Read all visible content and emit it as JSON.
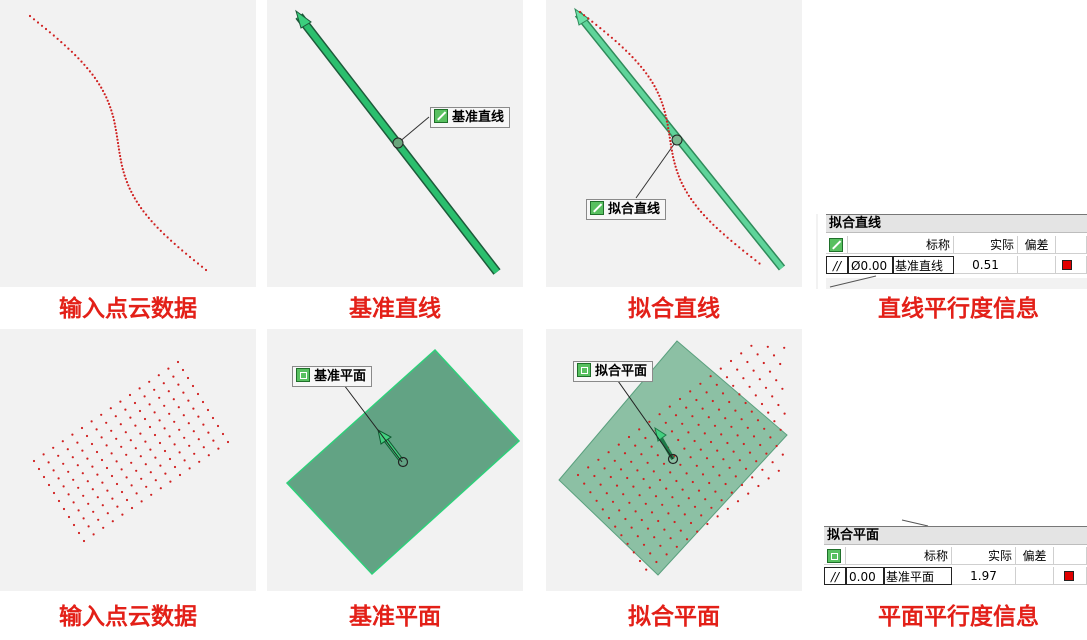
{
  "captions": {
    "r1_input": "输入点云数据",
    "r1_ref": "基准直线",
    "r1_fit": "拟合直线",
    "r1_info": "直线平行度信息",
    "r2_input": "输入点云数据",
    "r2_ref": "基准平面",
    "r2_fit": "拟合平面",
    "r2_info": "平面平行度信息"
  },
  "callouts": {
    "ref_line": "基准直线",
    "fit_line": "拟合直线",
    "ref_plane": "基准平面",
    "fit_plane": "拟合平面"
  },
  "line_table": {
    "title": "拟合直线",
    "col_nominal": "标称",
    "col_actual": "实际",
    "col_dev": "偏差",
    "symbol": "//",
    "tolerance": "Ø0.00",
    "reference": "基准直线",
    "actual": "0.51"
  },
  "plane_table": {
    "title": "拟合平面",
    "col_nominal": "标称",
    "col_actual": "实际",
    "col_dev": "偏差",
    "symbol": "//",
    "tolerance": "0.00",
    "reference": "基准平面",
    "actual": "1.97"
  },
  "colors": {
    "point": "#d02020",
    "accent_green": "#28b46a",
    "plane_ref": "#62a384",
    "plane_fit": "#8cc0a4",
    "caption": "#e32018",
    "status_flag": "#e00000"
  },
  "icons": [
    "line-feature-icon",
    "plane-feature-icon",
    "parallelism-symbol-icon"
  ]
}
